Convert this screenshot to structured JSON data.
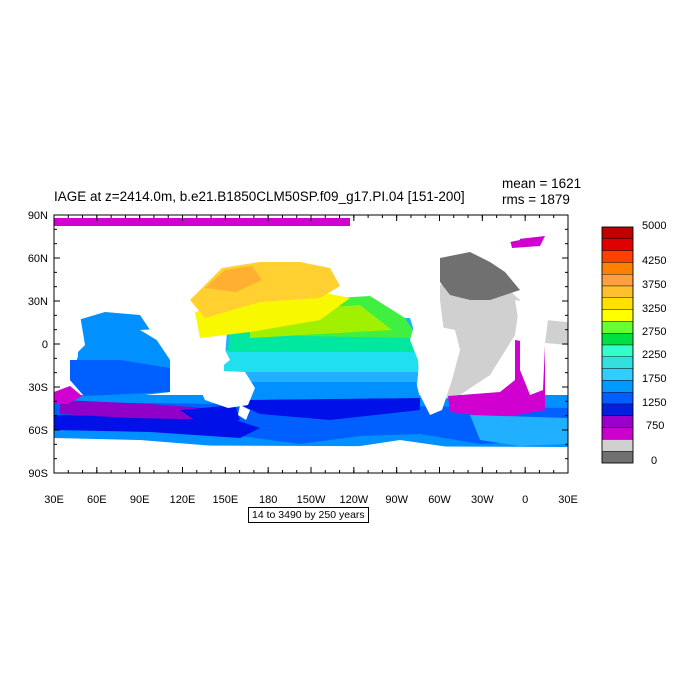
{
  "title": "IAGE at z=2414.0m, b.e21.B1850CLM50SP.f09_g17.PI.04 [151-200]",
  "stats": {
    "mean": "mean = 1621",
    "rms": "rms = 1879"
  },
  "subtitle": "14 to 3490 by 250 years",
  "axes": {
    "lon_labels": [
      "30E",
      "60E",
      "90E",
      "120E",
      "150E",
      "180",
      "150W",
      "120W",
      "90W",
      "60W",
      "30W",
      "0",
      "30E"
    ],
    "lat_labels": [
      "90N",
      "60N",
      "30N",
      "0",
      "30S",
      "60S",
      "90S"
    ]
  },
  "colorbar": {
    "labels": [
      "5000",
      "4250",
      "3750",
      "3250",
      "2750",
      "2250",
      "1750",
      "1250",
      "750",
      "0"
    ],
    "colors": [
      "#c00000",
      "#e00000",
      "#ff4000",
      "#ff8000",
      "#ffa040",
      "#ffc030",
      "#ffe000",
      "#ffff00",
      "#66ff33",
      "#00e040",
      "#33ffcc",
      "#33e0e0",
      "#33ccff",
      "#0099ff",
      "#0060ff",
      "#0020e0",
      "#9900cc",
      "#cc00cc",
      "#d0d0d0",
      "#707070"
    ]
  },
  "palette": {
    "land": "#ffffff",
    "magenta": "#d000d0",
    "purple": "#9000c8",
    "dark_blue": "#0010e8",
    "blue": "#0060ff",
    "azure": "#0090ff",
    "sky": "#20b0ff",
    "cyan": "#20e0f0",
    "green_cyan": "#00e8a0",
    "green": "#40f040",
    "yellow_green": "#a0f000",
    "yellow": "#f8f800",
    "gold": "#ffd030",
    "orange": "#ffb030",
    "light_gray": "#d0d0d0",
    "dark_gray": "#707070"
  }
}
